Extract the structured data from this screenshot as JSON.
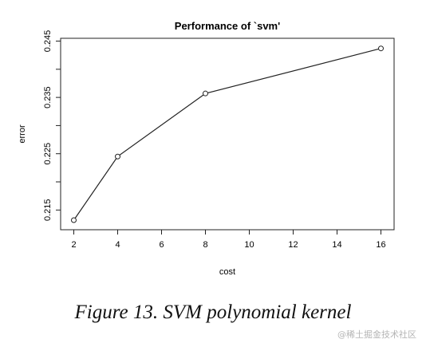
{
  "chart_data": {
    "type": "line",
    "title": "Performance of `svm'",
    "xlabel": "cost",
    "ylabel": "error",
    "x": [
      2,
      4,
      8,
      16
    ],
    "y": [
      0.2132,
      0.2245,
      0.2357,
      0.2437
    ],
    "xticks": [
      2,
      4,
      6,
      8,
      10,
      12,
      14,
      16
    ],
    "xtick_labels": [
      "2",
      "4",
      "6",
      "8",
      "10",
      "12",
      "14",
      "16"
    ],
    "yticks": [
      0.215,
      0.225,
      0.235,
      0.245
    ],
    "ytick_labels": [
      "0.215",
      "0.225",
      "0.235",
      "0.245"
    ],
    "yminor_ticks": [
      0.22,
      0.23,
      0.24
    ],
    "xlim": [
      1.4,
      16.6
    ],
    "ylim": [
      0.2115,
      0.2455
    ],
    "grid": false,
    "markers": "open-circle",
    "line_color": "#222222"
  },
  "caption": "Figure 13. SVM polynomial kernel",
  "watermark": "@稀土掘金技术社区"
}
